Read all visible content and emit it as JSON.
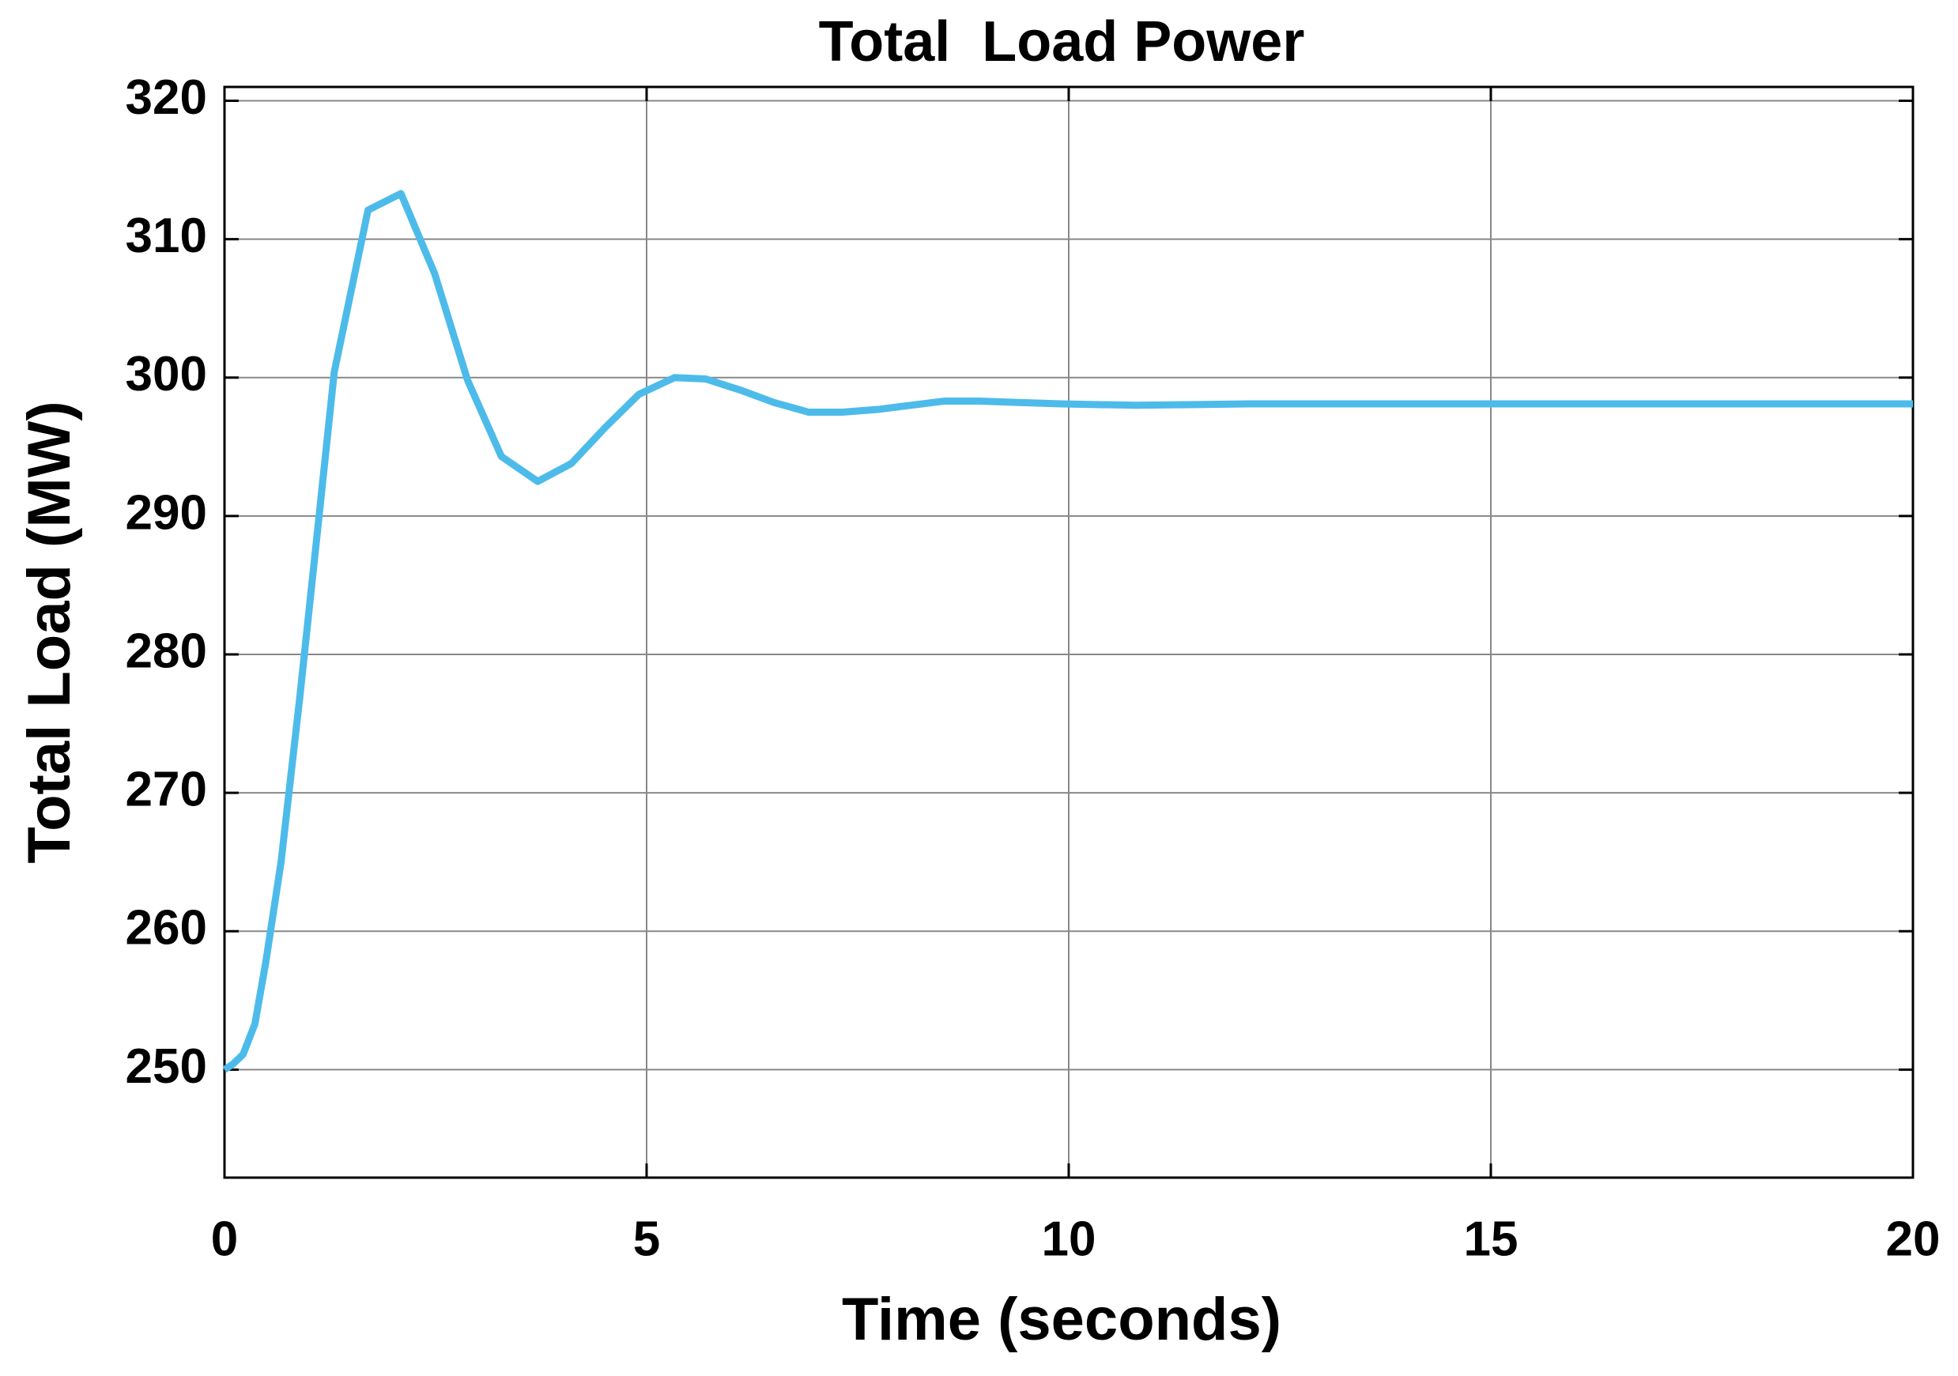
{
  "chart_data": {
    "type": "line",
    "title": "Total  Load Power",
    "x_label": "Time (seconds)",
    "y_label": "Total Load (MW)",
    "x": [
      0,
      0.1,
      0.22,
      0.36,
      0.49,
      0.67,
      0.89,
      1.11,
      1.3,
      1.7,
      2.09,
      2.49,
      2.88,
      3.28,
      3.71,
      4.11,
      4.51,
      4.91,
      5.33,
      5.7,
      6.11,
      6.51,
      6.92,
      7.32,
      7.74,
      8.52,
      8.95,
      9.91,
      10.8,
      12.13,
      13.6,
      20
    ],
    "series": [
      {
        "color": "#4dbbea",
        "values": [
          250,
          250.4,
          251.1,
          253.3,
          257.8,
          265,
          276.8,
          289.4,
          300.4,
          312.1,
          313.3,
          307.5,
          299.8,
          294.3,
          292.5,
          293.8,
          296.4,
          298.8,
          300,
          299.9,
          299.1,
          298.2,
          297.5,
          297.5,
          297.7,
          298.3,
          298.3,
          298.1,
          298,
          298.1,
          298.1,
          298.1
        ]
      }
    ],
    "xlim": [
      0,
      20
    ],
    "xticks": [
      0,
      5,
      10,
      15,
      20
    ],
    "ylim": [
      242.2,
      321
    ],
    "yticks": [
      250,
      260,
      270,
      280,
      290,
      300,
      310,
      320
    ],
    "grid": true
  }
}
